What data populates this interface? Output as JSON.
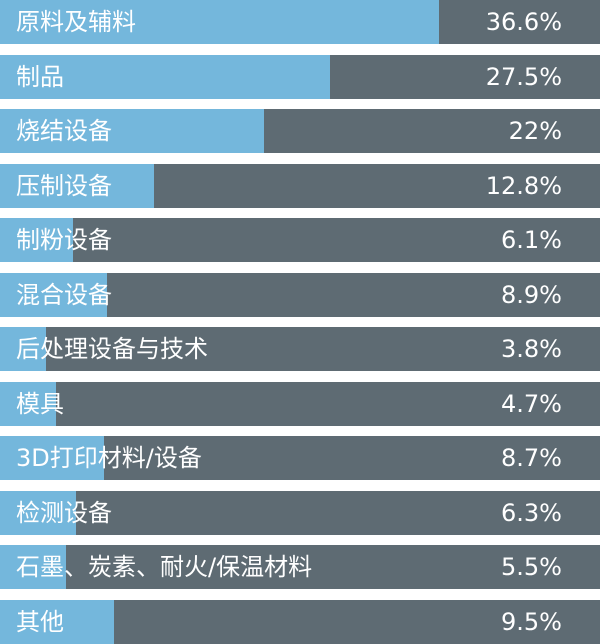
{
  "chart_data": {
    "type": "bar",
    "orientation": "horizontal",
    "categories": [
      "原料及辅料",
      "制品",
      "烧结设备",
      "压制设备",
      "制粉设备",
      "混合设备",
      "后处理设备与技术",
      "模具",
      "3D打印材料/设备",
      "检测设备",
      "石墨、炭素、耐火/保温材料",
      "其他"
    ],
    "values": [
      36.6,
      27.5,
      22,
      12.8,
      6.1,
      8.9,
      3.8,
      4.7,
      8.7,
      6.3,
      5.5,
      9.5
    ],
    "value_labels": [
      "36.6%",
      "27.5%",
      "22%",
      "12.8%",
      "6.1%",
      "8.9%",
      "3.8%",
      "4.7%",
      "8.7%",
      "6.3%",
      "5.5%",
      "9.5%"
    ],
    "unit": "%",
    "xlim": [
      0,
      50
    ],
    "colors": {
      "bar": "#74b7dc",
      "track": "#5e6b73",
      "text": "#ffffff"
    }
  }
}
